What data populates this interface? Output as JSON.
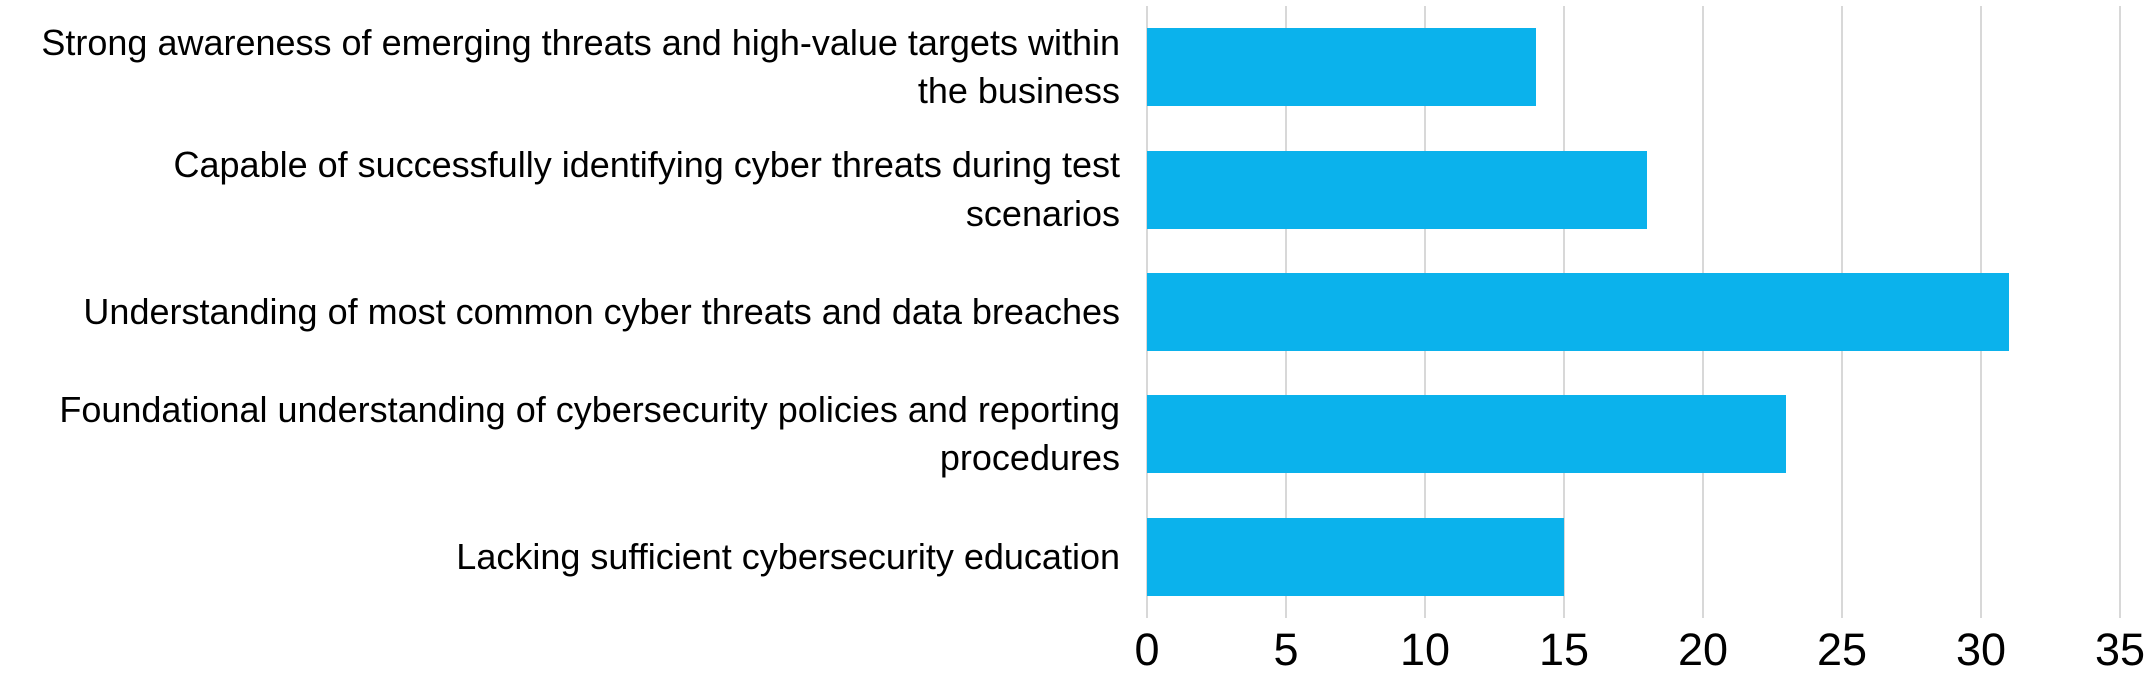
{
  "chart_data": {
    "type": "bar",
    "orientation": "horizontal",
    "title": "",
    "xlabel": "",
    "ylabel": "",
    "categories": [
      "Strong awareness of emerging threats and high-value targets within the business",
      "Capable of successfully identifying cyber threats during test scenarios",
      "Understanding of most common cyber threats and data breaches",
      "Foundational understanding of cybersecurity policies and reporting procedures",
      "Lacking sufficient cybersecurity education"
    ],
    "values": [
      14,
      18,
      31,
      23,
      15
    ],
    "xlim": [
      0,
      35
    ],
    "x_ticks": [
      0,
      5,
      10,
      15,
      20,
      25,
      30,
      35
    ],
    "grid": "vertical-only",
    "legend": "none",
    "bar_color": "#0bb2ec",
    "gridline_color": "#d8d8d8",
    "text_color": "#000000",
    "background_color": "#ffffff"
  }
}
